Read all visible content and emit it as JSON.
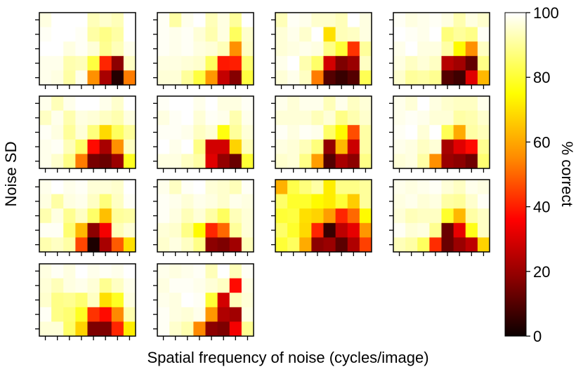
{
  "figure": {
    "xlabel": "Spatial frequency of noise (cycles/image)",
    "ylabel": "Noise SD"
  },
  "colorbar": {
    "label": "% correct",
    "colormap": "hot",
    "range": [
      0,
      100
    ],
    "ticks": [
      "0",
      "20",
      "40",
      "60",
      "80",
      "100"
    ]
  },
  "chart_data": [
    {
      "type": "heatmap",
      "panel": 1,
      "rows": 5,
      "cols": 8,
      "values": [
        [
          97,
          100,
          100,
          100,
          93,
          95,
          93,
          100
        ],
        [
          99,
          100,
          100,
          99,
          91,
          88,
          91,
          100
        ],
        [
          100,
          100,
          97,
          99,
          96,
          89,
          93,
          98
        ],
        [
          98,
          98,
          92,
          93,
          81,
          42,
          20,
          94
        ],
        [
          98,
          97,
          91,
          98,
          58,
          24,
          5,
          55
        ]
      ]
    },
    {
      "type": "heatmap",
      "panel": 2,
      "rows": 5,
      "cols": 8,
      "values": [
        [
          99,
          91,
          98,
          100,
          93,
          97,
          90,
          100
        ],
        [
          99,
          98,
          99,
          96,
          92,
          97,
          84,
          95
        ],
        [
          99,
          98,
          99,
          97,
          96,
          93,
          58,
          94
        ],
        [
          97,
          97,
          96,
          95,
          84,
          40,
          41,
          86
        ],
        [
          96,
          96,
          90,
          81,
          59,
          28,
          19,
          81
        ]
      ]
    },
    {
      "type": "heatmap",
      "panel": 3,
      "rows": 5,
      "cols": 8,
      "values": [
        [
          93,
          99,
          98,
          95,
          95,
          93,
          100,
          97
        ],
        [
          96,
          98,
          95,
          100,
          70,
          93,
          94,
          97
        ],
        [
          96,
          97,
          98,
          97,
          88,
          80,
          44,
          90
        ],
        [
          98,
          100,
          92,
          85,
          30,
          18,
          22,
          94
        ],
        [
          96,
          98,
          94,
          55,
          12,
          8,
          12,
          83
        ]
      ]
    },
    {
      "type": "heatmap",
      "panel": 4,
      "rows": 5,
      "cols": 8,
      "values": [
        [
          99,
          97,
          98,
          99,
          97,
          92,
          97,
          95
        ],
        [
          100,
          99,
          98,
          100,
          87,
          90,
          88,
          99
        ],
        [
          98,
          100,
          97,
          97,
          91,
          74,
          58,
          94
        ],
        [
          97,
          94,
          96,
          94,
          26,
          23,
          14,
          88
        ],
        [
          95,
          90,
          91,
          89,
          12,
          9,
          32,
          64
        ]
      ]
    },
    {
      "type": "heatmap",
      "panel": 5,
      "rows": 5,
      "cols": 8,
      "values": [
        [
          98,
          93,
          98,
          100,
          100,
          98,
          95,
          100
        ],
        [
          94,
          98,
          92,
          97,
          96,
          94,
          92,
          97
        ],
        [
          99,
          97,
          90,
          96,
          87,
          69,
          84,
          90
        ],
        [
          98,
          99,
          93,
          85,
          38,
          24,
          58,
          94
        ],
        [
          98,
          95,
          88,
          55,
          17,
          15,
          22,
          78
        ]
      ]
    },
    {
      "type": "heatmap",
      "panel": 6,
      "rows": 5,
      "cols": 8,
      "values": [
        [
          99,
          100,
          100,
          98,
          100,
          97,
          97,
          99
        ],
        [
          97,
          99,
          100,
          96,
          99,
          98,
          92,
          98
        ],
        [
          99,
          99,
          98,
          94,
          96,
          76,
          90,
          96
        ],
        [
          100,
          98,
          100,
          88,
          30,
          30,
          68,
          93
        ],
        [
          97,
          97,
          94,
          91,
          32,
          21,
          15,
          80
        ]
      ]
    },
    {
      "type": "heatmap",
      "panel": 7,
      "rows": 5,
      "cols": 8,
      "values": [
        [
          98,
          96,
          98,
          98,
          93,
          98,
          94,
          96
        ],
        [
          96,
          96,
          96,
          93,
          96,
          88,
          92,
          95
        ],
        [
          99,
          97,
          99,
          98,
          85,
          74,
          48,
          91
        ],
        [
          97,
          96,
          93,
          87,
          21,
          64,
          29,
          91
        ],
        [
          95,
          96,
          88,
          60,
          12,
          24,
          20,
          88
        ]
      ]
    },
    {
      "type": "heatmap",
      "panel": 8,
      "rows": 5,
      "cols": 8,
      "values": [
        [
          98,
          96,
          100,
          97,
          95,
          94,
          94,
          98
        ],
        [
          98,
          99,
          98,
          96,
          96,
          91,
          92,
          95
        ],
        [
          99,
          100,
          96,
          100,
          83,
          62,
          91,
          93
        ],
        [
          98,
          97,
          94,
          96,
          24,
          32,
          38,
          89
        ],
        [
          96,
          97,
          91,
          58,
          22,
          20,
          16,
          86
        ]
      ]
    },
    {
      "type": "heatmap",
      "panel": 9,
      "rows": 5,
      "cols": 8,
      "values": [
        [
          98,
          100,
          98,
          99,
          96,
          96,
          95,
          100
        ],
        [
          97,
          91,
          97,
          98,
          94,
          87,
          94,
          99
        ],
        [
          92,
          97,
          89,
          94,
          85,
          65,
          90,
          91
        ],
        [
          99,
          99,
          86,
          64,
          20,
          35,
          93,
          96
        ],
        [
          92,
          94,
          91,
          47,
          4,
          24,
          50,
          70
        ]
      ]
    },
    {
      "type": "heatmap",
      "panel": 10,
      "rows": 5,
      "cols": 8,
      "values": [
        [
          98,
          94,
          99,
          100,
          96,
          95,
          93,
          99
        ],
        [
          99,
          98,
          96,
          98,
          97,
          95,
          98,
          97
        ],
        [
          99,
          97,
          93,
          96,
          91,
          84,
          93,
          96
        ],
        [
          96,
          95,
          88,
          74,
          42,
          52,
          90,
          96
        ],
        [
          95,
          97,
          94,
          88,
          20,
          18,
          23,
          93
        ]
      ]
    },
    {
      "type": "heatmap",
      "panel": 11,
      "rows": 5,
      "cols": 8,
      "values": [
        [
          63,
          82,
          87,
          91,
          72,
          88,
          88,
          90
        ],
        [
          85,
          79,
          79,
          74,
          72,
          80,
          67,
          90
        ],
        [
          80,
          81,
          70,
          68,
          60,
          42,
          52,
          74
        ],
        [
          85,
          79,
          69,
          42,
          8,
          27,
          33,
          59
        ],
        [
          80,
          84,
          62,
          20,
          22,
          13,
          25,
          46
        ]
      ]
    },
    {
      "type": "heatmap",
      "panel": 12,
      "rows": 5,
      "cols": 8,
      "values": [
        [
          98,
          97,
          98,
          99,
          96,
          94,
          98,
          97
        ],
        [
          97,
          98,
          96,
          97,
          91,
          90,
          95,
          99
        ],
        [
          96,
          93,
          94,
          94,
          79,
          64,
          91,
          94
        ],
        [
          99,
          96,
          97,
          89,
          15,
          33,
          77,
          94
        ],
        [
          93,
          91,
          84,
          43,
          15,
          22,
          27,
          68
        ]
      ]
    },
    {
      "type": "heatmap",
      "panel": 13,
      "rows": 5,
      "cols": 8,
      "values": [
        [
          97,
          99,
          97,
          100,
          98,
          99,
          98,
          100
        ],
        [
          96,
          93,
          97,
          98,
          96,
          89,
          94,
          98
        ],
        [
          95,
          88,
          89,
          86,
          94,
          70,
          78,
          97
        ],
        [
          99,
          88,
          86,
          78,
          44,
          38,
          57,
          92
        ],
        [
          96,
          96,
          85,
          68,
          18,
          18,
          42,
          72
        ]
      ]
    },
    {
      "type": "heatmap",
      "panel": 14,
      "rows": 5,
      "cols": 8,
      "values": [
        [
          98,
          97,
          98,
          99,
          93,
          100,
          93,
          99
        ],
        [
          97,
          99,
          99,
          98,
          96,
          94,
          38,
          97
        ],
        [
          98,
          97,
          100,
          99,
          80,
          30,
          93,
          96
        ],
        [
          99,
          97,
          96,
          98,
          59,
          25,
          23,
          97
        ],
        [
          99,
          95,
          92,
          57,
          20,
          18,
          35,
          89
        ]
      ]
    }
  ]
}
